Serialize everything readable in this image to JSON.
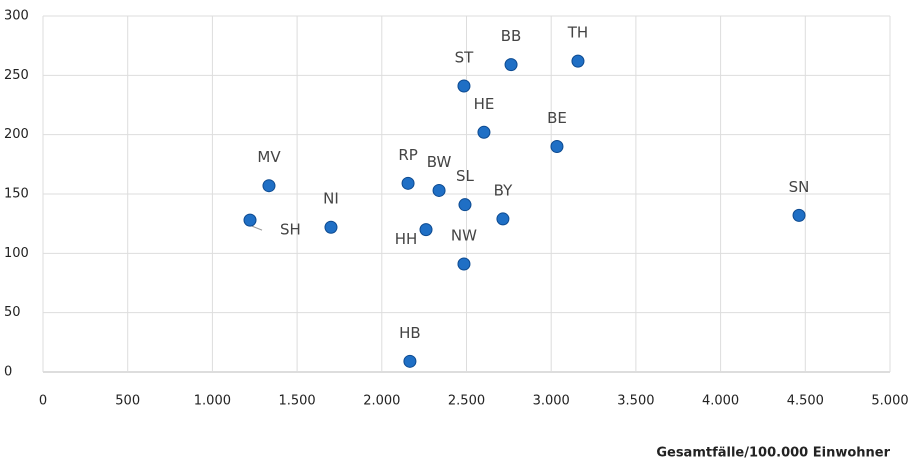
{
  "chart_data": {
    "type": "scatter",
    "x_label": "Gesamtfälle/100.000 Einwohner",
    "labels": [
      "SH",
      "MV",
      "NI",
      "RP",
      "BW",
      "HH",
      "HB",
      "SL",
      "NW",
      "ST",
      "HE",
      "BB",
      "TH",
      "BE",
      "BY",
      "SN"
    ],
    "x": [
      1222,
      1334,
      1700,
      2155,
      2338,
      2261,
      2166,
      2491,
      2485,
      2485,
      2603,
      2763,
      3158,
      3034,
      2715,
      4463
    ],
    "values": [
      128,
      157,
      122,
      159,
      153,
      120,
      9,
      141,
      91,
      241,
      202,
      259,
      262,
      190,
      129,
      132
    ],
    "color": "#1f6fc5",
    "xlim": [
      0,
      5000
    ],
    "xticks": [
      0,
      500,
      {
        "value": 1000,
        "label": "1.000"
      },
      {
        "value": 1500,
        "label": "1.500"
      },
      {
        "value": 2000,
        "label": "2.000"
      },
      {
        "value": 2500,
        "label": "2.500"
      },
      {
        "value": 3000,
        "label": "3.000"
      },
      {
        "value": 3500,
        "label": "3.500"
      },
      {
        "value": 4000,
        "label": "4.000"
      },
      {
        "value": 4500,
        "label": "4.500"
      },
      {
        "value": 5000,
        "label": "5.000"
      }
    ],
    "ylim": [
      0,
      300
    ],
    "yticks": [
      0,
      50,
      100,
      150,
      200,
      250,
      300
    ],
    "grid": true
  }
}
